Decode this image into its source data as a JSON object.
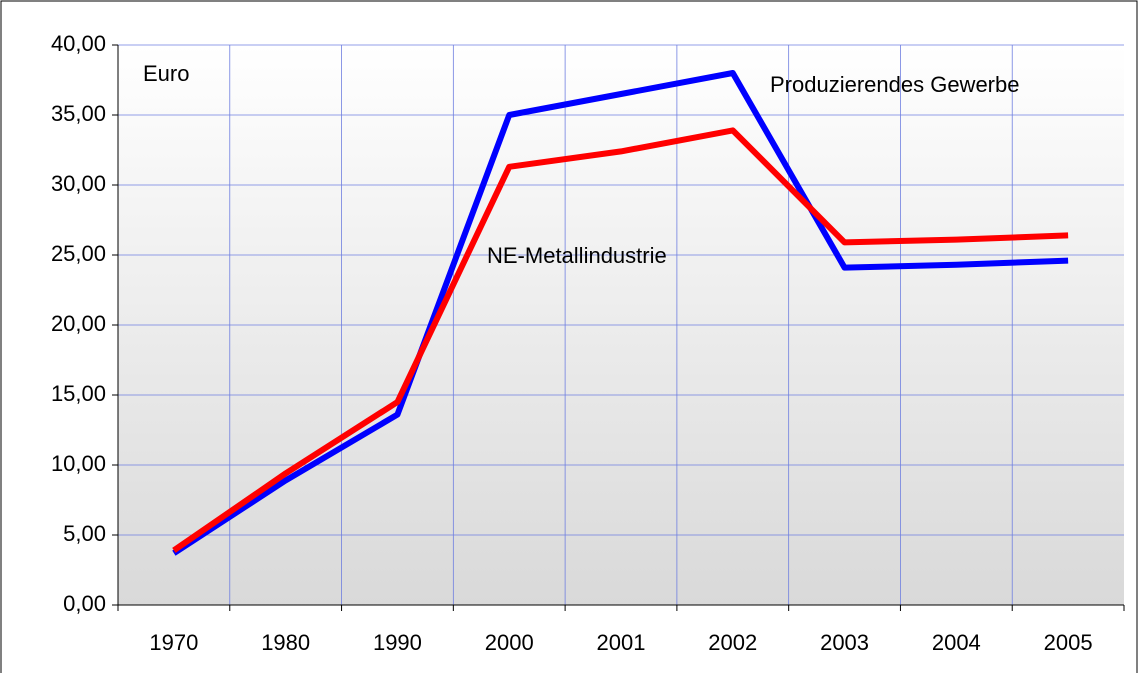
{
  "chart_data": {
    "type": "line",
    "y_label": "Euro",
    "categories": [
      "1970",
      "1980",
      "1990",
      "2000",
      "2001",
      "2002",
      "2003",
      "2004",
      "2005"
    ],
    "series": [
      {
        "name": "Produzierendes Gewerbe",
        "color": "#0000ff",
        "values": [
          3.7,
          8.9,
          13.6,
          35.0,
          36.5,
          38.0,
          24.1,
          24.3,
          24.6
        ]
      },
      {
        "name": "NE-Metallindustrie",
        "color": "#ff0000",
        "values": [
          3.9,
          9.4,
          14.5,
          31.3,
          32.4,
          33.9,
          25.9,
          26.1,
          26.4
        ]
      }
    ],
    "ylim": [
      0,
      40
    ],
    "yticks": [
      {
        "value": 0,
        "label": "0,00"
      },
      {
        "value": 5,
        "label": "5,00"
      },
      {
        "value": 10,
        "label": "10,00"
      },
      {
        "value": 15,
        "label": "15,00"
      },
      {
        "value": 20,
        "label": "20,00"
      },
      {
        "value": 25,
        "label": "25,00"
      },
      {
        "value": 30,
        "label": "30,00"
      },
      {
        "value": 35,
        "label": "35,00"
      },
      {
        "value": 40,
        "label": "40,00"
      }
    ],
    "grid": true
  }
}
